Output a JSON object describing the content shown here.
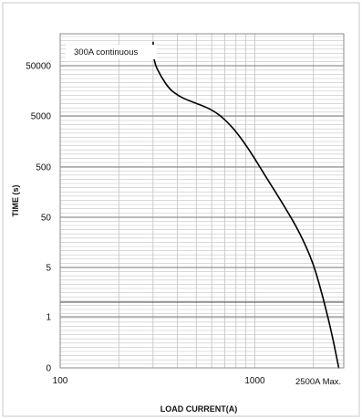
{
  "chart_data": {
    "type": "line",
    "title": "",
    "xlabel": "LOAD CURRENT(A)",
    "ylabel": "TIME (s)",
    "x_scale": "log",
    "x_ticks": [
      {
        "value": 100,
        "label": "100"
      },
      {
        "value": 1000,
        "label": "1000"
      }
    ],
    "y_tick_labels": [
      "50000",
      "5000",
      "500",
      "50",
      "5",
      "1",
      "0"
    ],
    "annotations": {
      "top_left": "300A continuous",
      "bottom_right": "2500A Max."
    },
    "grid": true,
    "series": [
      {
        "name": "",
        "points": [
          {
            "x": 300,
            "y": 150000
          },
          {
            "x": 302,
            "y": 60000
          },
          {
            "x": 330,
            "y": 30000
          },
          {
            "x": 365,
            "y": 17000
          },
          {
            "x": 405,
            "y": 12500
          },
          {
            "x": 460,
            "y": 10000
          },
          {
            "x": 540,
            "y": 8000
          },
          {
            "x": 620,
            "y": 6200
          },
          {
            "x": 700,
            "y": 4300
          },
          {
            "x": 800,
            "y": 2500
          },
          {
            "x": 950,
            "y": 1000
          },
          {
            "x": 1150,
            "y": 300
          },
          {
            "x": 1400,
            "y": 90
          },
          {
            "x": 1700,
            "y": 25
          },
          {
            "x": 2000,
            "y": 6
          },
          {
            "x": 2250,
            "y": 1.8
          },
          {
            "x": 2500,
            "y": 0.5
          },
          {
            "x": 2700,
            "y": 0
          }
        ]
      }
    ],
    "colors": {
      "line": "#000000",
      "grid": "#b0b0b0",
      "frame": "#c8c8c8"
    }
  }
}
